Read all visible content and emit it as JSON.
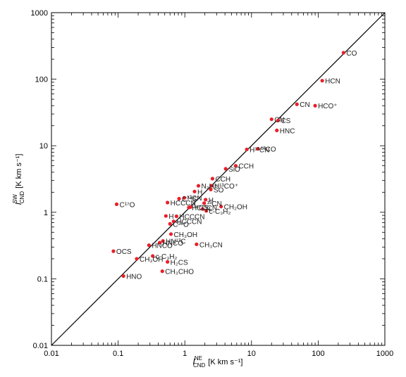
{
  "chart_data": {
    "type": "scatter",
    "log_x": true,
    "log_y": true,
    "xlim": [
      0.01,
      1000
    ],
    "ylim": [
      0.01,
      1000
    ],
    "x_ticks": [
      "0.01",
      "0.1",
      "1",
      "10",
      "100",
      "1000"
    ],
    "y_ticks": [
      "0.01",
      "0.1",
      "1",
      "10",
      "100",
      "1000"
    ],
    "xlabel": "I",
    "xlabel_sup": "NE",
    "xlabel_sub": "CND",
    "xlabel_unit": "[K km s⁻¹]",
    "ylabel": "I",
    "ylabel_sup": "SW",
    "ylabel_sub": "CND",
    "ylabel_unit": "[K km s⁻¹]",
    "reference_line": "y = x",
    "point_color": "#e8202a",
    "grid": false,
    "points": [
      {
        "label": "CO",
        "x": 240,
        "y": 250
      },
      {
        "label": "HCN",
        "x": 115,
        "y": 95
      },
      {
        "label": "CN",
        "x": 48,
        "y": 42
      },
      {
        "label": "HCO⁺",
        "x": 90,
        "y": 40
      },
      {
        "label": "CN",
        "x": 20,
        "y": 25
      },
      {
        "label": "CS",
        "x": 25,
        "y": 24
      },
      {
        "label": "HNC",
        "x": 24,
        "y": 17
      },
      {
        "label": "H¹³CN",
        "x": 8.5,
        "y": 8.8
      },
      {
        "label": "¹³CO",
        "x": 12.5,
        "y": 9
      },
      {
        "label": "SiO",
        "x": 4.1,
        "y": 4.5
      },
      {
        "label": "CCH",
        "x": 5.8,
        "y": 5
      },
      {
        "label": "CCH",
        "x": 2.6,
        "y": 3.2
      },
      {
        "label": "N₂H⁺",
        "x": 1.6,
        "y": 2.5
      },
      {
        "label": "H¹³CO⁺",
        "x": 2.5,
        "y": 2.5
      },
      {
        "label": "H",
        "x": 1.4,
        "y": 2.05
      },
      {
        "label": "SO",
        "x": 2.45,
        "y": 2.2
      },
      {
        "label": "C³⁴S",
        "x": 0.82,
        "y": 1.6
      },
      {
        "label": "¹³CN",
        "x": 0.98,
        "y": 1.65
      },
      {
        "label": "HCCCN",
        "x": 0.55,
        "y": 1.4
      },
      {
        "label": "C¹⁷O",
        "x": 0.095,
        "y": 1.32
      },
      {
        "label": "H",
        "x": 2.05,
        "y": 1.55
      },
      {
        "label": "¹³CN",
        "x": 1.95,
        "y": 1.37
      },
      {
        "label": "HCCCN",
        "x": 1.15,
        "y": 1.18
      },
      {
        "label": "³⁴CS",
        "x": 1.22,
        "y": 1.2
      },
      {
        "label": "CH₂OH",
        "x": 3.5,
        "y": 1.22
      },
      {
        "label": "H",
        "x": 1.85,
        "y": 1.12
      },
      {
        "label": "c-C₃H₂",
        "x": 2.1,
        "y": 1.05
      },
      {
        "label": "H",
        "x": 0.52,
        "y": 0.88
      },
      {
        "label": "HCCCN",
        "x": 0.75,
        "y": 0.87
      },
      {
        "label": "HCCCN",
        "x": 0.68,
        "y": 0.73
      },
      {
        "label": "C¹⁸O",
        "x": 0.6,
        "y": 0.67
      },
      {
        "label": "CH₃OH",
        "x": 0.62,
        "y": 0.47
      },
      {
        "label": "HN¹³C",
        "x": 0.47,
        "y": 0.37
      },
      {
        "label": "HNCO",
        "x": 0.42,
        "y": 0.35
      },
      {
        "label": "HNCO",
        "x": 0.29,
        "y": 0.32
      },
      {
        "label": "CH₃CN",
        "x": 1.5,
        "y": 0.33
      },
      {
        "label": "OCS",
        "x": 0.085,
        "y": 0.26
      },
      {
        "label": "c-C₃H₂",
        "x": 0.33,
        "y": 0.22
      },
      {
        "label": "CH₃OH",
        "x": 0.19,
        "y": 0.2
      },
      {
        "label": "H₂CS",
        "x": 0.55,
        "y": 0.18
      },
      {
        "label": "CH₃CHO",
        "x": 0.46,
        "y": 0.13
      },
      {
        "label": "HNO",
        "x": 0.12,
        "y": 0.11
      }
    ]
  }
}
